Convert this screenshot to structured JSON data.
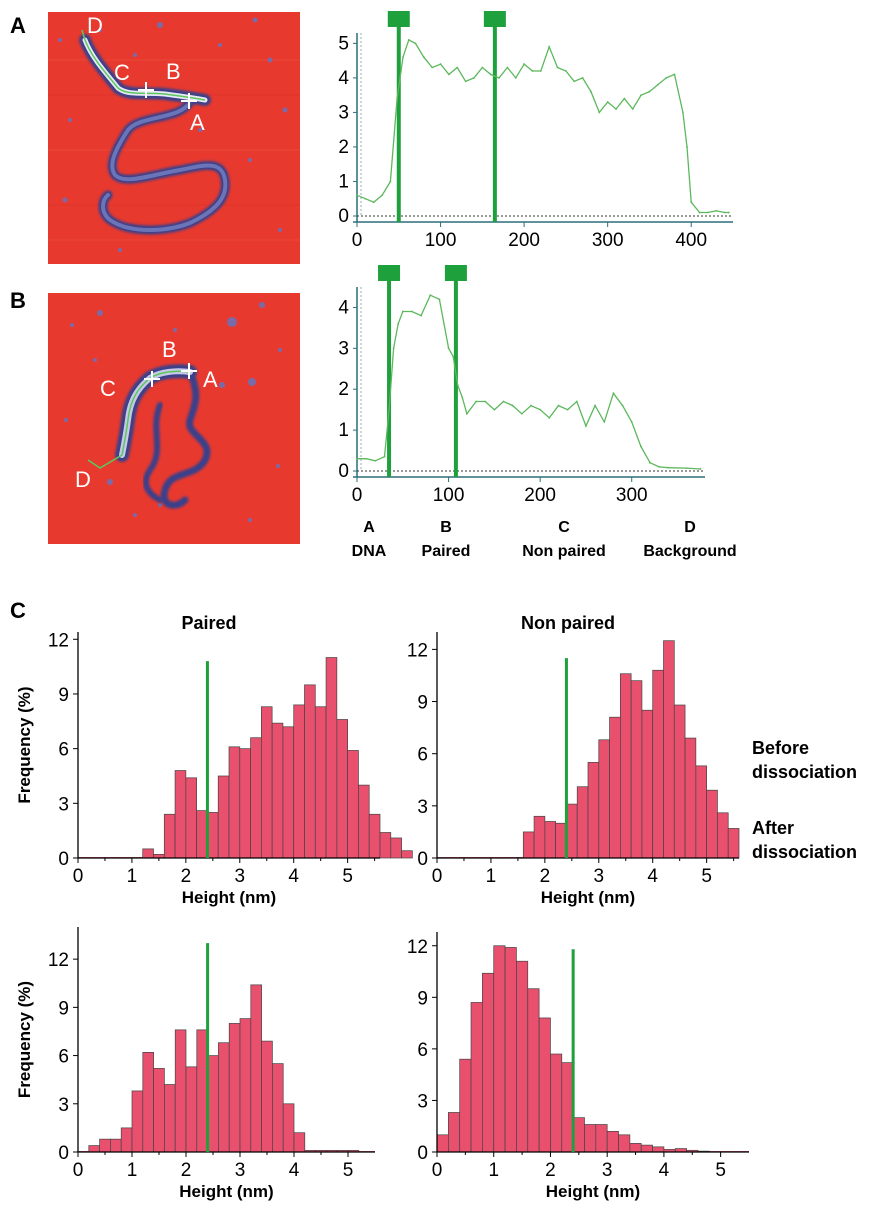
{
  "panels": {
    "a": "A",
    "b": "B",
    "c": "C"
  },
  "afm_images": [
    {
      "labels": {
        "a": "A",
        "b": "B",
        "c": "C",
        "d": "D"
      }
    },
    {
      "labels": {
        "a": "A",
        "b": "B",
        "c": "C",
        "d": "D"
      }
    }
  ],
  "legend": [
    {
      "letter": "A",
      "text": "DNA"
    },
    {
      "letter": "B",
      "text": "Paired"
    },
    {
      "letter": "C",
      "text": "Non paired"
    },
    {
      "letter": "D",
      "text": "Background"
    }
  ],
  "conditions": {
    "before": [
      "Before",
      "dissociation"
    ],
    "after": [
      "After",
      "dissociation"
    ]
  },
  "colors": {
    "profile_line": "#5cb85c",
    "marker": "#1ea03c",
    "bar_fill": "#e8506e",
    "bar_edge": "#444444",
    "afm_bg": "#e8392e",
    "afm_dna": "#5a5aa8"
  },
  "chart_data": [
    {
      "id": "profile-a",
      "type": "line",
      "title": "",
      "xlabel": "",
      "ylabel": "",
      "xlim": [
        0,
        450
      ],
      "ylim": [
        0,
        5.3
      ],
      "xticks": [
        0,
        100,
        200,
        300,
        400
      ],
      "yticks": [
        0,
        1,
        2,
        3,
        4,
        5
      ],
      "markers": [
        50,
        165
      ],
      "series": [
        {
          "x": [
            0,
            10,
            20,
            30,
            40,
            48,
            55,
            62,
            70,
            80,
            90,
            100,
            110,
            120,
            130,
            140,
            150,
            160,
            170,
            180,
            190,
            200,
            210,
            220,
            230,
            240,
            250,
            260,
            270,
            280,
            290,
            300,
            310,
            320,
            330,
            340,
            350,
            360,
            370,
            380,
            390,
            395,
            400,
            410,
            420,
            430,
            440,
            445
          ],
          "y": [
            0.6,
            0.5,
            0.4,
            0.6,
            1.0,
            3.4,
            4.6,
            5.1,
            5.0,
            4.6,
            4.3,
            4.4,
            4.1,
            4.3,
            3.9,
            4.0,
            4.3,
            4.1,
            4.0,
            4.3,
            4.0,
            4.4,
            4.2,
            4.2,
            4.9,
            4.3,
            4.2,
            3.9,
            4.0,
            3.6,
            3.0,
            3.3,
            3.1,
            3.4,
            3.1,
            3.5,
            3.6,
            3.8,
            4.0,
            4.1,
            3.0,
            2.0,
            0.4,
            0.1,
            0.1,
            0.15,
            0.1,
            0.1
          ]
        }
      ]
    },
    {
      "id": "profile-b",
      "type": "line",
      "title": "",
      "xlabel": "",
      "ylabel": "",
      "xlim": [
        0,
        380
      ],
      "ylim": [
        0,
        4.5
      ],
      "xticks": [
        0,
        100,
        200,
        300
      ],
      "yticks": [
        0,
        1,
        2,
        3,
        4
      ],
      "markers": [
        35,
        108
      ],
      "series": [
        {
          "x": [
            0,
            10,
            20,
            30,
            35,
            40,
            45,
            50,
            60,
            70,
            80,
            90,
            100,
            105,
            110,
            115,
            120,
            130,
            140,
            150,
            160,
            170,
            180,
            190,
            200,
            210,
            220,
            230,
            240,
            250,
            260,
            270,
            280,
            290,
            300,
            310,
            320,
            330,
            340,
            360,
            375
          ],
          "y": [
            0.3,
            0.3,
            0.25,
            0.35,
            1.5,
            3.0,
            3.6,
            3.9,
            3.9,
            3.8,
            4.3,
            4.2,
            3.0,
            2.8,
            2.1,
            1.8,
            1.4,
            1.7,
            1.7,
            1.5,
            1.7,
            1.6,
            1.4,
            1.6,
            1.5,
            1.3,
            1.6,
            1.5,
            1.7,
            1.1,
            1.6,
            1.2,
            1.9,
            1.6,
            1.2,
            0.6,
            0.2,
            0.1,
            0.08,
            0.07,
            0.05
          ]
        }
      ]
    },
    {
      "id": "hist-paired-before",
      "type": "bar",
      "title": "Paired",
      "xlabel": "Height (nm)",
      "ylabel": "Frequency (%)",
      "xlim": [
        0,
        5.6
      ],
      "ylim": [
        0,
        12.4
      ],
      "xticks": [
        0,
        1,
        2,
        3,
        4,
        5
      ],
      "yticks": [
        0,
        3,
        6,
        9,
        12
      ],
      "bin_start": 1.2,
      "bin_width": 0.2,
      "threshold": 2.4,
      "threshold_top": 10.8,
      "values": [
        0.5,
        0.2,
        2.4,
        4.8,
        4.4,
        2.6,
        2.5,
        4.5,
        6.1,
        6.0,
        6.6,
        8.3,
        7.4,
        7.2,
        8.4,
        9.5,
        8.3,
        11.0,
        7.6,
        5.9,
        4.0,
        2.4,
        1.4,
        1.1,
        0.4
      ]
    },
    {
      "id": "hist-nonpaired-before",
      "type": "bar",
      "title": "Non paired",
      "xlabel": "Height (nm)",
      "ylabel": "",
      "xlim": [
        0,
        5.6
      ],
      "ylim": [
        0,
        13.0
      ],
      "xticks": [
        0,
        1,
        2,
        3,
        4,
        5
      ],
      "yticks": [
        0,
        3,
        6,
        9,
        12
      ],
      "bin_start": 1.6,
      "bin_width": 0.2,
      "threshold": 2.4,
      "threshold_top": 11.5,
      "values": [
        1.5,
        2.4,
        2.1,
        2.0,
        3.1,
        4.1,
        5.5,
        6.8,
        8.1,
        10.6,
        10.2,
        8.5,
        10.8,
        12.5,
        8.8,
        6.9,
        5.3,
        3.9,
        2.6,
        1.7
      ]
    },
    {
      "id": "hist-paired-after",
      "type": "bar",
      "title": "",
      "xlabel": "Height (nm)",
      "ylabel": "Frequency (%)",
      "xlim": [
        0,
        5.5
      ],
      "ylim": [
        0,
        14.0
      ],
      "xticks": [
        0,
        1,
        2,
        3,
        4,
        5
      ],
      "yticks": [
        0,
        3,
        6,
        9,
        12
      ],
      "bin_start": 0.2,
      "bin_width": 0.2,
      "threshold": 2.4,
      "threshold_top": 13.0,
      "values": [
        0.4,
        0.8,
        0.8,
        1.5,
        3.8,
        6.2,
        5.2,
        4.2,
        7.6,
        5.3,
        7.6,
        6.0,
        6.8,
        8.0,
        8.3,
        10.4,
        6.9,
        5.5,
        3.0,
        1.2,
        0.1,
        0.1,
        0.1,
        0.1,
        0.1
      ]
    },
    {
      "id": "hist-nonpaired-after",
      "type": "bar",
      "title": "",
      "xlabel": "Height (nm)",
      "ylabel": "",
      "xlim": [
        0,
        5.5
      ],
      "ylim": [
        0,
        12.8
      ],
      "xticks": [
        0,
        1,
        2,
        3,
        4,
        5
      ],
      "yticks": [
        0,
        3,
        6,
        9,
        12
      ],
      "bin_start": 0.0,
      "bin_width": 0.2,
      "threshold": 2.4,
      "threshold_top": 11.8,
      "values": [
        1.0,
        2.3,
        5.4,
        8.7,
        10.4,
        12.0,
        11.9,
        11.1,
        9.5,
        7.8,
        5.7,
        5.2,
        2.0,
        1.6,
        1.6,
        1.2,
        1.0,
        0.5,
        0.4,
        0.3,
        0.15,
        0.2,
        0.1,
        0.05
      ]
    }
  ]
}
